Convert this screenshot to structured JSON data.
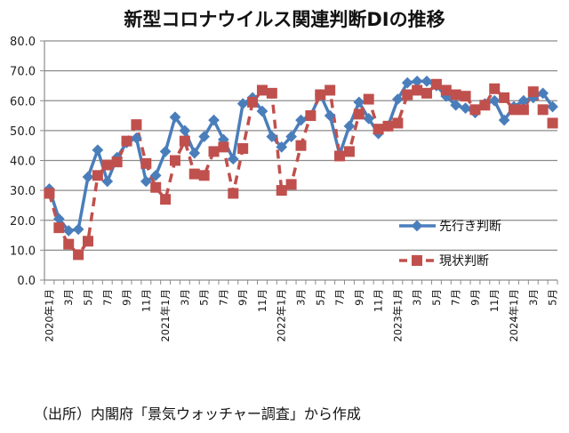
{
  "chart_data": {
    "type": "line",
    "title": "新型コロナウイルス関連判断DIの推移",
    "xlabel": "",
    "ylabel": "",
    "ylim": [
      0,
      80
    ],
    "yticks": [
      "0.0",
      "10.0",
      "20.0",
      "30.0",
      "40.0",
      "50.0",
      "60.0",
      "70.0",
      "80.0"
    ],
    "grid": true,
    "legend_position": "right-middle",
    "x_tick_labels": [
      "2020年1月",
      "3月",
      "5月",
      "7月",
      "9月",
      "11月",
      "2021年1月",
      "3月",
      "5月",
      "7月",
      "9月",
      "11月",
      "2022年1月",
      "3月",
      "5月",
      "7月",
      "9月",
      "11月",
      "2023年1月",
      "3月",
      "5月",
      "7月",
      "9月",
      "11月",
      "2024年1月",
      "3月",
      "5月"
    ],
    "months": [
      "2020/1",
      "2020/2",
      "2020/3",
      "2020/4",
      "2020/5",
      "2020/6",
      "2020/7",
      "2020/8",
      "2020/9",
      "2020/10",
      "2020/11",
      "2020/12",
      "2021/1",
      "2021/2",
      "2021/3",
      "2021/4",
      "2021/5",
      "2021/6",
      "2021/7",
      "2021/8",
      "2021/9",
      "2021/10",
      "2021/11",
      "2021/12",
      "2022/1",
      "2022/2",
      "2022/3",
      "2022/4",
      "2022/5",
      "2022/6",
      "2022/7",
      "2022/8",
      "2022/9",
      "2022/10",
      "2022/11",
      "2022/12",
      "2023/1",
      "2023/2",
      "2023/3",
      "2023/4",
      "2023/5",
      "2023/6",
      "2023/7",
      "2023/8",
      "2023/9",
      "2023/10",
      "2023/11",
      "2023/12",
      "2024/1",
      "2024/2",
      "2024/3",
      "2024/4",
      "2024/5"
    ],
    "series": [
      {
        "name": "先行き判断",
        "color": "#4a7ebb",
        "marker": "diamond",
        "style": "solid",
        "values": [
          30.5,
          20.5,
          16.5,
          17.0,
          34.5,
          43.5,
          33.0,
          41.0,
          46.0,
          47.5,
          33.0,
          35.0,
          43.0,
          54.5,
          50.0,
          42.5,
          48.0,
          53.5,
          47.0,
          40.5,
          59.0,
          61.0,
          56.5,
          48.0,
          44.5,
          48.0,
          53.5,
          55.0,
          62.0,
          55.0,
          42.0,
          51.5,
          59.5,
          54.0,
          49.0,
          51.5,
          60.5,
          66.0,
          66.5,
          66.5,
          65.0,
          61.5,
          58.5,
          57.5,
          56.0,
          59.0,
          60.0,
          53.5,
          58.0,
          60.0,
          61.0,
          62.5,
          58.0
        ]
      },
      {
        "name": "現状判断",
        "color": "#c0504d",
        "marker": "square",
        "style": "dashed",
        "values": [
          29.0,
          17.5,
          12.0,
          8.5,
          13.0,
          35.0,
          38.5,
          39.5,
          46.5,
          52.0,
          39.0,
          31.0,
          27.0,
          40.0,
          46.5,
          35.5,
          35.0,
          43.0,
          44.5,
          29.0,
          44.0,
          59.5,
          63.5,
          62.5,
          30.0,
          32.0,
          45.0,
          55.0,
          62.0,
          63.5,
          41.5,
          43.0,
          55.5,
          60.5,
          50.5,
          51.5,
          52.5,
          62.0,
          63.5,
          62.5,
          65.5,
          63.5,
          62.0,
          61.5,
          57.0,
          58.5,
          64.0,
          61.0,
          57.0,
          57.0,
          63.0,
          57.0,
          52.5
        ]
      }
    ]
  },
  "source_note": "（出所）内閣府「景気ウォッチャー調査」から作成"
}
